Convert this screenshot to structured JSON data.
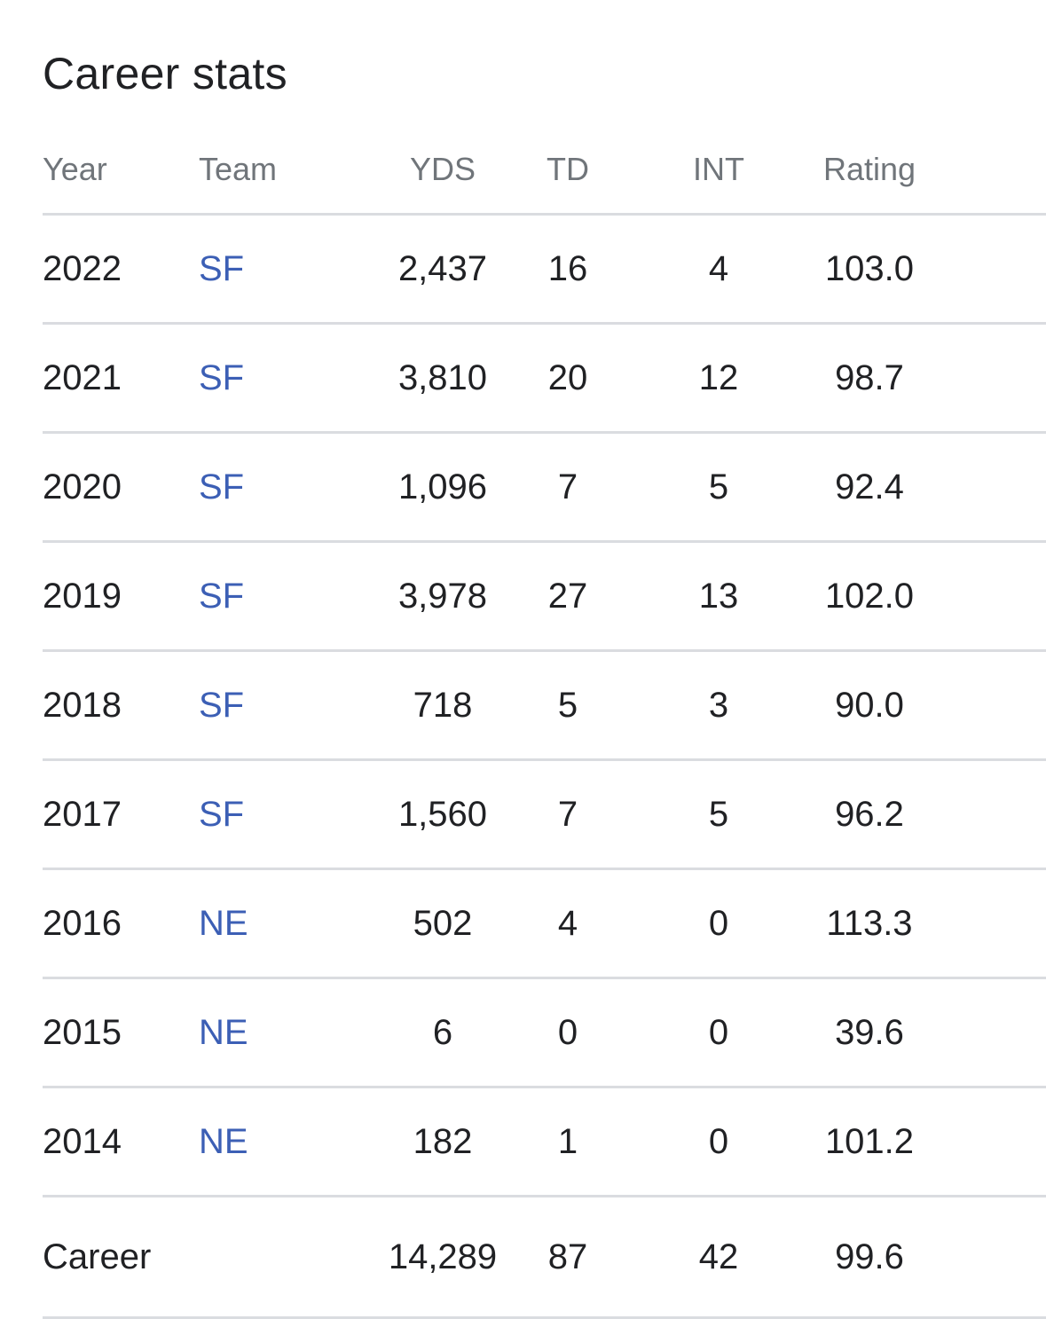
{
  "title": "Career stats",
  "headers": {
    "year": "Year",
    "team": "Team",
    "yds": "YDS",
    "td": "TD",
    "int": "INT",
    "rating": "Rating"
  },
  "rows": [
    {
      "year": "2022",
      "team": "SF",
      "yds": "2,437",
      "td": "16",
      "int": "4",
      "rating": "103.0"
    },
    {
      "year": "2021",
      "team": "SF",
      "yds": "3,810",
      "td": "20",
      "int": "12",
      "rating": "98.7"
    },
    {
      "year": "2020",
      "team": "SF",
      "yds": "1,096",
      "td": "7",
      "int": "5",
      "rating": "92.4"
    },
    {
      "year": "2019",
      "team": "SF",
      "yds": "3,978",
      "td": "27",
      "int": "13",
      "rating": "102.0"
    },
    {
      "year": "2018",
      "team": "SF",
      "yds": "718",
      "td": "5",
      "int": "3",
      "rating": "90.0"
    },
    {
      "year": "2017",
      "team": "SF",
      "yds": "1,560",
      "td": "7",
      "int": "5",
      "rating": "96.2"
    },
    {
      "year": "2016",
      "team": "NE",
      "yds": "502",
      "td": "4",
      "int": "0",
      "rating": "113.3"
    },
    {
      "year": "2015",
      "team": "NE",
      "yds": "6",
      "td": "0",
      "int": "0",
      "rating": "39.6"
    },
    {
      "year": "2014",
      "team": "NE",
      "yds": "182",
      "td": "1",
      "int": "0",
      "rating": "101.2"
    }
  ],
  "career": {
    "label": "Career",
    "yds": "14,289",
    "td": "87",
    "int": "42",
    "rating": "99.6"
  },
  "colors": {
    "text": "#202124",
    "header_text": "#70757a",
    "link": "#3c5fb5",
    "divider": "#dadce0"
  }
}
